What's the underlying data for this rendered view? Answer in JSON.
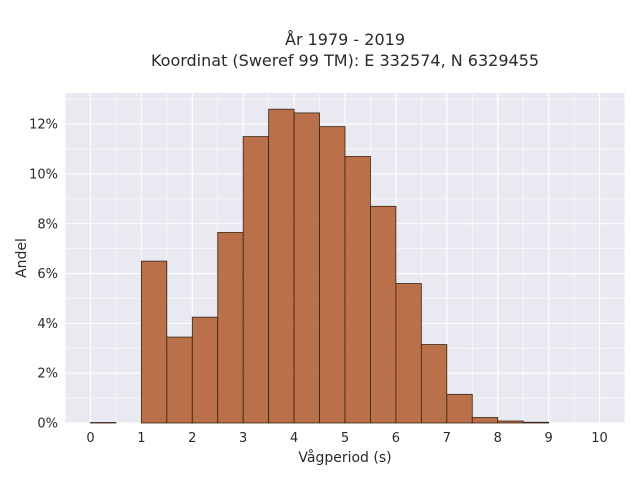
{
  "chart_data": {
    "type": "bar",
    "title_lines": [
      "År 1979 - 2019",
      "Koordinat (Sweref 99 TM): E 332574, N 6329455"
    ],
    "xlabel": "Vågperiod (s)",
    "ylabel": "Andel",
    "xlim": [
      -0.5,
      10.5
    ],
    "ylim": [
      0,
      0.1325
    ],
    "x_ticks": [
      0,
      1,
      2,
      3,
      4,
      5,
      6,
      7,
      8,
      9,
      10
    ],
    "y_ticks": [
      0,
      0.02,
      0.04,
      0.06,
      0.08,
      0.1,
      0.12
    ],
    "y_tick_labels": [
      "0%",
      "2%",
      "4%",
      "6%",
      "8%",
      "10%",
      "12%"
    ],
    "bin_width": 0.5,
    "bin_starts": [
      0,
      0.5,
      1,
      1.5,
      2,
      2.5,
      3,
      3.5,
      4,
      4.5,
      5,
      5.5,
      6,
      6.5,
      7,
      7.5,
      8,
      8.5,
      9,
      9.5
    ],
    "values": [
      0.0002,
      0,
      0.065,
      0.0345,
      0.0425,
      0.0765,
      0.115,
      0.126,
      0.1245,
      0.119,
      0.107,
      0.087,
      0.056,
      0.0315,
      0.0115,
      0.0022,
      0.0008,
      0.0003,
      0,
      0
    ],
    "bar_color": "#b5653a",
    "bar_edge_color": "#3b2416",
    "background_color": "#e9e9f1",
    "grid": true,
    "legend": "none"
  }
}
